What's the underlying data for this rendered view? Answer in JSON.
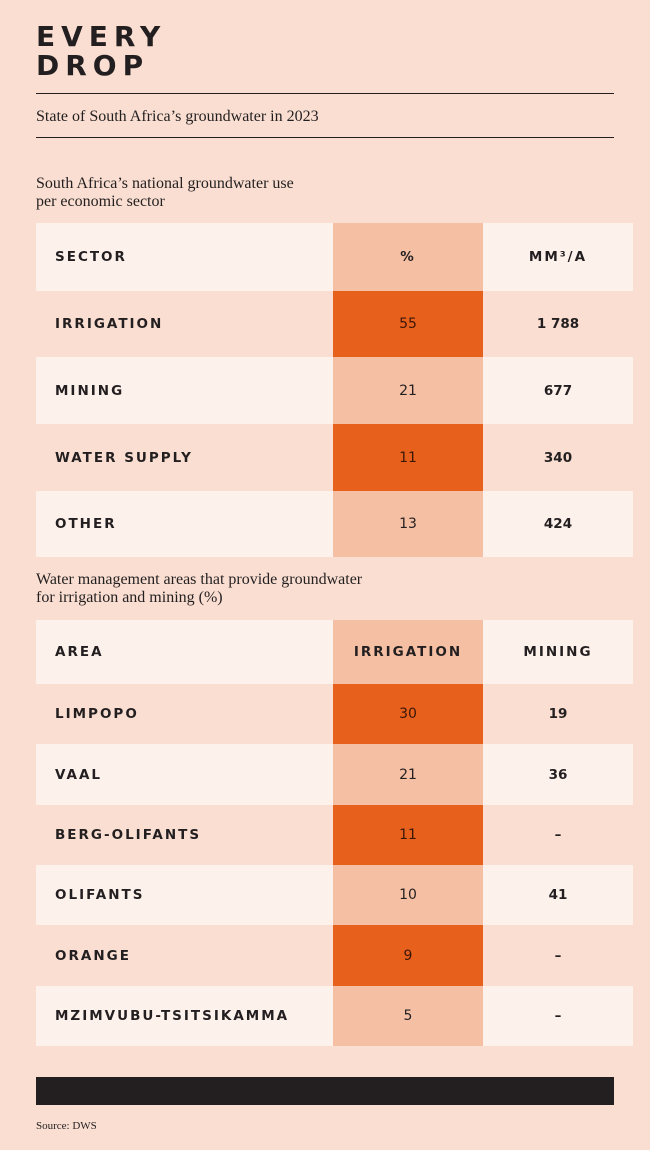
{
  "brand": {
    "line1": "EVERY",
    "line2": "DROP"
  },
  "subtitle": "State of South Africa’s groundwater in 2023",
  "sector_table": {
    "title_line1": "South Africa’s national groundwater use",
    "title_line2": "per economic sector",
    "headers": [
      "SECTOR",
      "%",
      "MM³/A"
    ],
    "rows": [
      {
        "sector": "IRRIGATION",
        "percent": "55",
        "volume": "1 788"
      },
      {
        "sector": "MINING",
        "percent": "21",
        "volume": "677"
      },
      {
        "sector": "WATER SUPPLY",
        "percent": "11",
        "volume": "340"
      },
      {
        "sector": "OTHER",
        "percent": "13",
        "volume": "424"
      }
    ]
  },
  "area_table": {
    "title_line1": "Water management areas that provide groundwater",
    "title_line2": "for irrigation and mining (%)",
    "headers": [
      "AREA",
      "IRRIGATION",
      "MINING"
    ],
    "rows": [
      {
        "area": "LIMPOPO",
        "irrigation": "30",
        "mining": "19"
      },
      {
        "area": "VAAL",
        "irrigation": "21",
        "mining": "36"
      },
      {
        "area": "BERG-OLIFANTS",
        "irrigation": "11",
        "mining": "–"
      },
      {
        "area": "OLIFANTS",
        "irrigation": "10",
        "mining": "41"
      },
      {
        "area": "ORANGE",
        "irrigation": "9",
        "mining": "–"
      },
      {
        "area": "MZIMVUBU-TSITSIKAMMA",
        "irrigation": "5",
        "mining": "–"
      }
    ]
  },
  "source": "Source: DWS",
  "colors": {
    "background": "#f9ded1",
    "accent": "#e8611c",
    "accent_pale": "#f5bfa4",
    "row_light": "#fdf1ec",
    "ink": "#231f20"
  }
}
